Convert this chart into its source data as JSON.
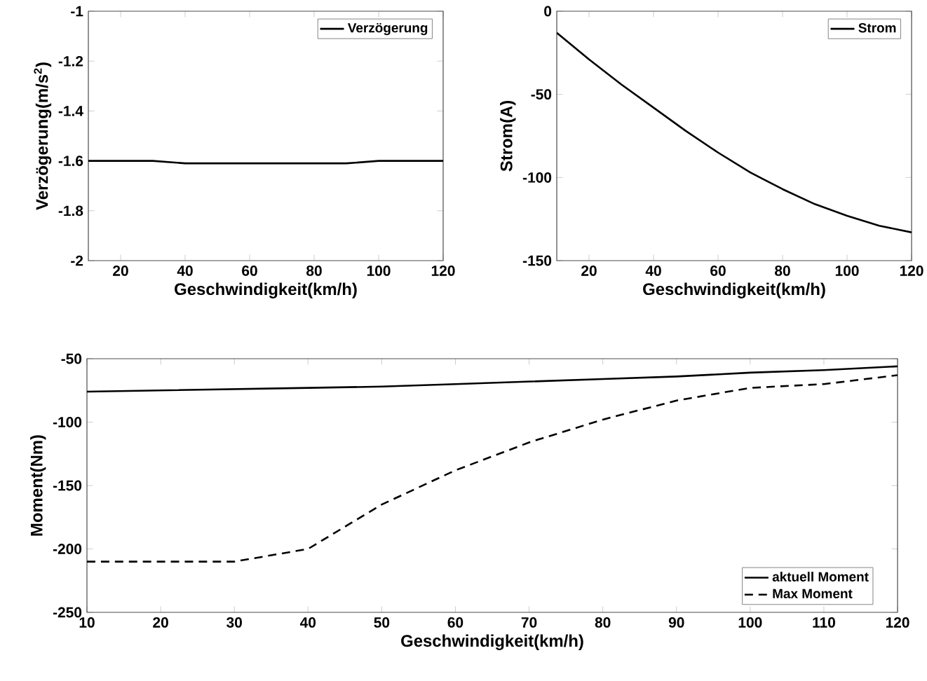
{
  "chart_data": [
    {
      "type": "line",
      "xlabel": "Geschwindigkeit(km/h)",
      "ylabel": "Verzögerung(m/s$^{2}$)",
      "x": [
        10,
        20,
        30,
        40,
        50,
        60,
        70,
        80,
        90,
        100,
        110,
        120
      ],
      "xlim": [
        10,
        120
      ],
      "xticks": [
        20,
        40,
        60,
        80,
        100,
        120
      ],
      "ylim": [
        -2,
        -1
      ],
      "yticks": [
        -2,
        -1.8,
        -1.6,
        -1.4,
        -1.2,
        -1
      ],
      "legend": "top right",
      "series": [
        {
          "name": "Verzögerung",
          "color": "#000000",
          "line_style": "solid",
          "values": [
            -1.6,
            -1.6,
            -1.6,
            -1.61,
            -1.61,
            -1.61,
            -1.61,
            -1.61,
            -1.61,
            -1.6,
            -1.6,
            -1.6
          ]
        }
      ]
    },
    {
      "type": "line",
      "xlabel": "Geschwindigkeit(km/h)",
      "ylabel": "Strom(A)",
      "x": [
        10,
        20,
        30,
        40,
        50,
        60,
        70,
        80,
        90,
        100,
        110,
        120
      ],
      "xlim": [
        10,
        120
      ],
      "xticks": [
        20,
        40,
        60,
        80,
        100,
        120
      ],
      "ylim": [
        -150,
        0
      ],
      "yticks": [
        -150,
        -100,
        -50,
        0
      ],
      "legend": "top right",
      "series": [
        {
          "name": "Strom",
          "color": "#000000",
          "line_style": "solid",
          "values": [
            -13,
            -29,
            -44,
            -58,
            -72,
            -85,
            -97,
            -107,
            -116,
            -123,
            -129,
            -133
          ]
        }
      ]
    },
    {
      "type": "line",
      "xlabel": "Geschwindigkeit(km/h)",
      "ylabel": "Moment(Nm)",
      "x": [
        10,
        20,
        30,
        40,
        50,
        60,
        70,
        80,
        90,
        100,
        110,
        120
      ],
      "xlim": [
        10,
        120
      ],
      "xticks": [
        10,
        20,
        30,
        40,
        50,
        60,
        70,
        80,
        90,
        100,
        110,
        120
      ],
      "ylim": [
        -250,
        -50
      ],
      "yticks": [
        -250,
        -200,
        -150,
        -100,
        -50
      ],
      "legend": "bottom right",
      "series": [
        {
          "name": "aktuell Moment",
          "color": "#000000",
          "line_style": "solid",
          "values": [
            -76,
            -75,
            -74,
            -73,
            -72,
            -70,
            -68,
            -66,
            -64,
            -61,
            -59,
            -56
          ]
        },
        {
          "name": "Max Moment",
          "color": "#000000",
          "line_style": "dashed",
          "values": [
            -210,
            -210,
            -210,
            -200,
            -165,
            -138,
            -116,
            -98,
            -83,
            -73,
            -70,
            -63
          ]
        }
      ]
    }
  ]
}
